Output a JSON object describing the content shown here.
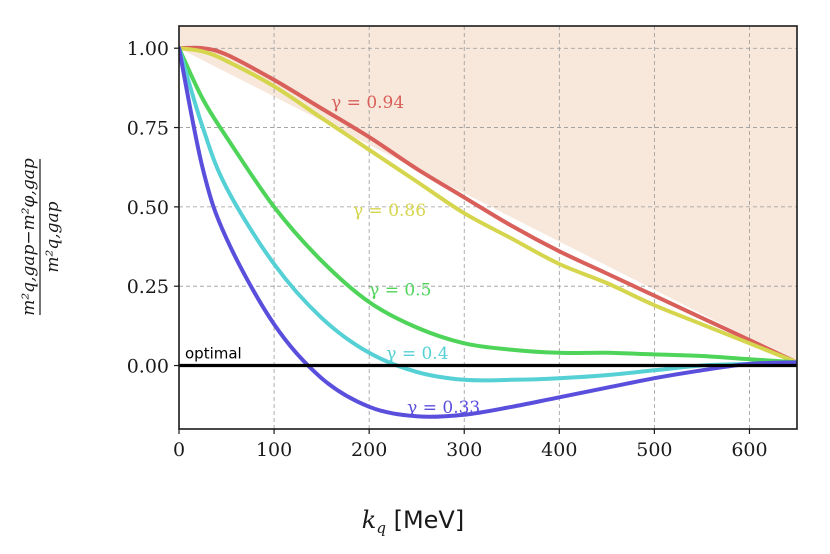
{
  "chart_data": {
    "type": "line",
    "xlabel_var": "k",
    "xlabel_sub": "q",
    "xlabel_unit": "[MeV]",
    "ylabel_num": "m²q,gap−m²φ,gap",
    "ylabel_den": "m²q,gap",
    "xlim": [
      0,
      650
    ],
    "ylim": [
      -0.2,
      1.07
    ],
    "xticks": [
      0,
      100,
      200,
      300,
      400,
      500,
      600
    ],
    "yticks": [
      0.0,
      0.25,
      0.5,
      0.75,
      1.0
    ],
    "ytick_labels": [
      "0.00",
      "0.25",
      "0.50",
      "0.75",
      "1.00"
    ],
    "grid": true,
    "shaded_region": {
      "color": "#f8e8dc",
      "upper": 1.07
    },
    "optimal_line": {
      "y": 0.0,
      "label": "optimal",
      "color": "#000000"
    },
    "series": [
      {
        "name": "γ = 0.94",
        "color": "#d9605a",
        "label_at": [
          160,
          0.83
        ],
        "x": [
          0,
          25,
          50,
          100,
          150,
          200,
          250,
          300,
          350,
          400,
          450,
          500,
          550,
          600,
          650
        ],
        "y": [
          1.0,
          1.0,
          0.98,
          0.9,
          0.81,
          0.72,
          0.62,
          0.53,
          0.44,
          0.36,
          0.29,
          0.22,
          0.15,
          0.08,
          0.01
        ]
      },
      {
        "name": "γ = 0.86",
        "color": "#d6d54e",
        "label_at": [
          183,
          0.49
        ],
        "x": [
          0,
          25,
          50,
          100,
          150,
          200,
          250,
          300,
          350,
          400,
          450,
          500,
          550,
          600,
          650
        ],
        "y": [
          1.0,
          0.99,
          0.96,
          0.88,
          0.78,
          0.68,
          0.58,
          0.48,
          0.4,
          0.32,
          0.26,
          0.19,
          0.13,
          0.07,
          0.01
        ]
      },
      {
        "name": "γ = 0.5",
        "color": "#4fd45a",
        "label_at": [
          200,
          0.24
        ],
        "x": [
          0,
          25,
          50,
          100,
          150,
          200,
          250,
          300,
          350,
          400,
          450,
          500,
          550,
          600,
          650
        ],
        "y": [
          1.0,
          0.84,
          0.72,
          0.5,
          0.33,
          0.2,
          0.12,
          0.07,
          0.05,
          0.04,
          0.04,
          0.035,
          0.03,
          0.02,
          0.01
        ]
      },
      {
        "name": "γ = 0.4",
        "color": "#55d0d5",
        "label_at": [
          218,
          0.04
        ],
        "x": [
          0,
          25,
          50,
          100,
          150,
          200,
          250,
          300,
          350,
          400,
          450,
          500,
          550,
          600,
          650
        ],
        "y": [
          1.0,
          0.75,
          0.56,
          0.32,
          0.15,
          0.04,
          -0.02,
          -0.045,
          -0.045,
          -0.04,
          -0.03,
          -0.015,
          0.0,
          0.005,
          0.01
        ]
      },
      {
        "name": "γ = 0.33",
        "color": "#5a4fdc",
        "label_at": [
          240,
          -0.13
        ],
        "x": [
          0,
          25,
          50,
          100,
          150,
          200,
          250,
          300,
          350,
          400,
          450,
          500,
          550,
          600,
          650
        ],
        "y": [
          1.0,
          0.62,
          0.4,
          0.13,
          -0.04,
          -0.13,
          -0.16,
          -0.155,
          -0.13,
          -0.1,
          -0.07,
          -0.04,
          -0.015,
          0.005,
          0.01
        ]
      }
    ]
  }
}
